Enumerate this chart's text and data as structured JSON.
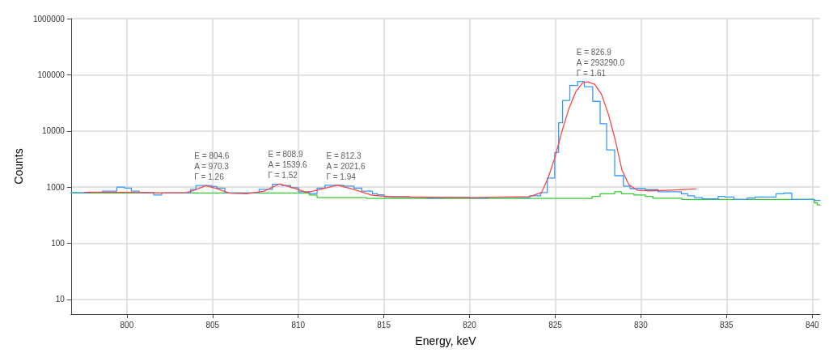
{
  "chart_data": {
    "type": "step",
    "xlabel": "Energy, keV",
    "ylabel": "Counts",
    "log": "y",
    "grid": true,
    "marker": "none",
    "line_style": "solid",
    "xlim": [
      796.74,
      840.46
    ],
    "xticks": [
      800,
      805,
      810,
      815,
      820,
      825,
      830,
      835,
      840
    ],
    "ylim": [
      5.5,
      1000000
    ],
    "yticks": [
      10,
      100,
      1000,
      10000,
      100000,
      1000000
    ],
    "series": [
      {
        "color": "#33cc33",
        "x": [
          796.74,
          810.65,
          811.1,
          814.0,
          827.16,
          827.62,
          828.47,
          828.86,
          829.6,
          830.25,
          830.7,
          832.4,
          840.12,
          840.3,
          840.46
        ],
        "values": [
          789,
          724,
          652,
          630,
          685,
          764,
          830,
          764,
          724,
          685,
          637,
          604,
          527,
          484,
          484
        ]
      },
      {
        "color": "#3399ff",
        "x": [
          796.74,
          797.03,
          797.8,
          798.57,
          799.41,
          799.87,
          800.26,
          800.72,
          801.57,
          802.03,
          803.72,
          804.03,
          804.95,
          805.26,
          805.72,
          807.41,
          807.72,
          808.49,
          809.03,
          809.56,
          810.02,
          810.64,
          811.1,
          811.56,
          812.64,
          813.25,
          813.71,
          814.33,
          814.63,
          815.02,
          816.5,
          817.5,
          818.5,
          820,
          821,
          822.5,
          823.5,
          824.15,
          824.54,
          824.97,
          825.2,
          825.43,
          825.85,
          826.31,
          826.7,
          827.19,
          827.62,
          828.0,
          828.47,
          828.98,
          829.37,
          830.25,
          831.0,
          832.36,
          832.74,
          833.13,
          833.59,
          834.51,
          834.9,
          835.43,
          836.2,
          836.66,
          837.89,
          838.35,
          838.81,
          840.12,
          840.46
        ],
        "values": [
          803,
          789,
          813,
          848,
          1000,
          960,
          848,
          803,
          724,
          789,
          912,
          1070,
          1030,
          960,
          789,
          803,
          912,
          1127,
          1070,
          980,
          830,
          770,
          960,
          1080,
          1045,
          960,
          848,
          760,
          730,
          680,
          660,
          640,
          660,
          640,
          660,
          650,
          700,
          803,
          1456,
          4140,
          13970,
          35000,
          64600,
          75900,
          61400,
          33600,
          13400,
          4600,
          1600,
          1046,
          942,
          904,
          830,
          764,
          700,
          652,
          618,
          685,
          669,
          604,
          640,
          669,
          764,
          784,
          604,
          580,
          580
        ]
      },
      {
        "type": "line",
        "color": "#ff4444",
        "x": [
          797.5,
          800,
          802,
          803.5,
          804,
          804.6,
          805.2,
          806,
          807,
          808,
          808.9,
          809.8,
          810.5,
          811.2,
          812.3,
          813.3,
          814.3,
          815.5,
          820,
          823.5,
          824.2,
          824.6,
          825,
          825.4,
          825.8,
          826.2,
          826.6,
          826.9,
          827.3,
          827.7,
          828.1,
          828.5,
          828.9,
          829.3,
          829.8,
          830.5,
          831.5,
          833.2
        ],
        "values": [
          810,
          810,
          790,
          800,
          900,
          1060,
          950,
          780,
          760,
          850,
          1140,
          950,
          800,
          900,
          1090,
          900,
          720,
          670,
          650,
          680,
          800,
          1500,
          3500,
          10000,
          25000,
          50000,
          72000,
          75000,
          68000,
          45000,
          20000,
          7000,
          2000,
          1100,
          880,
          860,
          880,
          930
        ]
      }
    ],
    "annotations": [
      {
        "text": "E = 804.6\nA = 970.3\nΓ = 1.26",
        "x": 804.6,
        "y": 1060
      },
      {
        "text": "E = 808.9\nA = 1539.6\nΓ = 1.52",
        "x": 808.9,
        "y": 1140
      },
      {
        "text": "E = 812.3\nA = 2021.6\nΓ = 1.94",
        "x": 812.3,
        "y": 1090
      },
      {
        "text": "E = 826.9\nA = 293290.0\nΓ = 1.61",
        "x": 826.9,
        "y": 75000
      }
    ]
  }
}
